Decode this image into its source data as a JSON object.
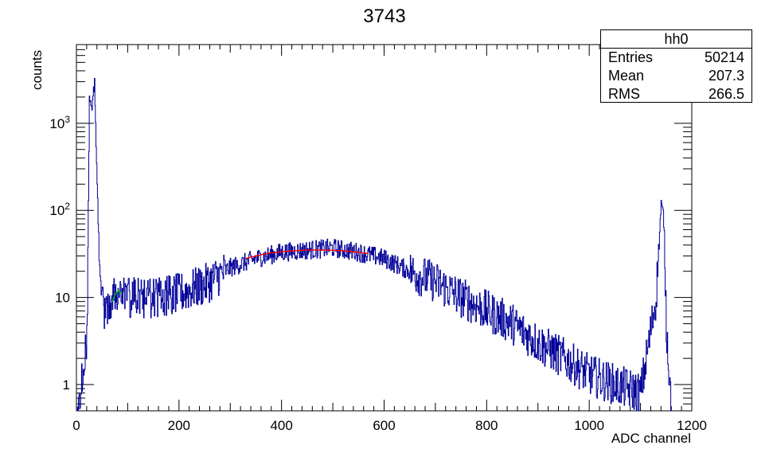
{
  "chart_data": {
    "type": "histogram",
    "title": "3743",
    "xlabel": "ADC channel",
    "ylabel": "counts",
    "xlim": [
      0,
      1200
    ],
    "ylim": [
      0.5,
      8000
    ],
    "yscale": "log",
    "x_ticks": [
      "0",
      "200",
      "400",
      "600",
      "800",
      "1000",
      "1200"
    ],
    "y_tick_labels": [
      {
        "value": 1,
        "label": "1"
      },
      {
        "value": 10,
        "label": "10"
      },
      {
        "value": 100,
        "label": "10^2"
      },
      {
        "value": 1000,
        "label": "10^3"
      }
    ],
    "grid": false,
    "series": [
      {
        "color": "#000099",
        "x": [
          0,
          20,
          25,
          30,
          35,
          40,
          45,
          50,
          55,
          60,
          70,
          80,
          90,
          100,
          150,
          200,
          250,
          300,
          350,
          400,
          450,
          500,
          550,
          600,
          650,
          700,
          750,
          800,
          850,
          900,
          950,
          1000,
          1050,
          1100,
          1130,
          1140,
          1145,
          1150,
          1160
        ],
        "values": [
          0.5,
          3,
          2000,
          1500,
          3000,
          200,
          20,
          10,
          7,
          8,
          10,
          11,
          10,
          10,
          10,
          11,
          14,
          22,
          28,
          33,
          35,
          37,
          33,
          28,
          20,
          15,
          10,
          7,
          5,
          3,
          2,
          1.3,
          1,
          0.8,
          10,
          120,
          80,
          5,
          0.5
        ]
      },
      {
        "color": "#ff0000",
        "x": [
          330,
          370,
          410,
          450,
          490,
          530,
          570
        ],
        "values": [
          28,
          32,
          34,
          35,
          35,
          34,
          32
        ]
      },
      {
        "color": "#00cc00",
        "x": [
          70,
          76,
          82,
          88
        ],
        "values": [
          9,
          11,
          12,
          11
        ]
      }
    ],
    "stats": {
      "name": "hh0",
      "rows": [
        {
          "label": "Entries",
          "value": "50214"
        },
        {
          "label": "Mean",
          "value": "207.3"
        },
        {
          "label": "RMS",
          "value": "266.5"
        }
      ]
    },
    "legend_position": "top-right"
  }
}
